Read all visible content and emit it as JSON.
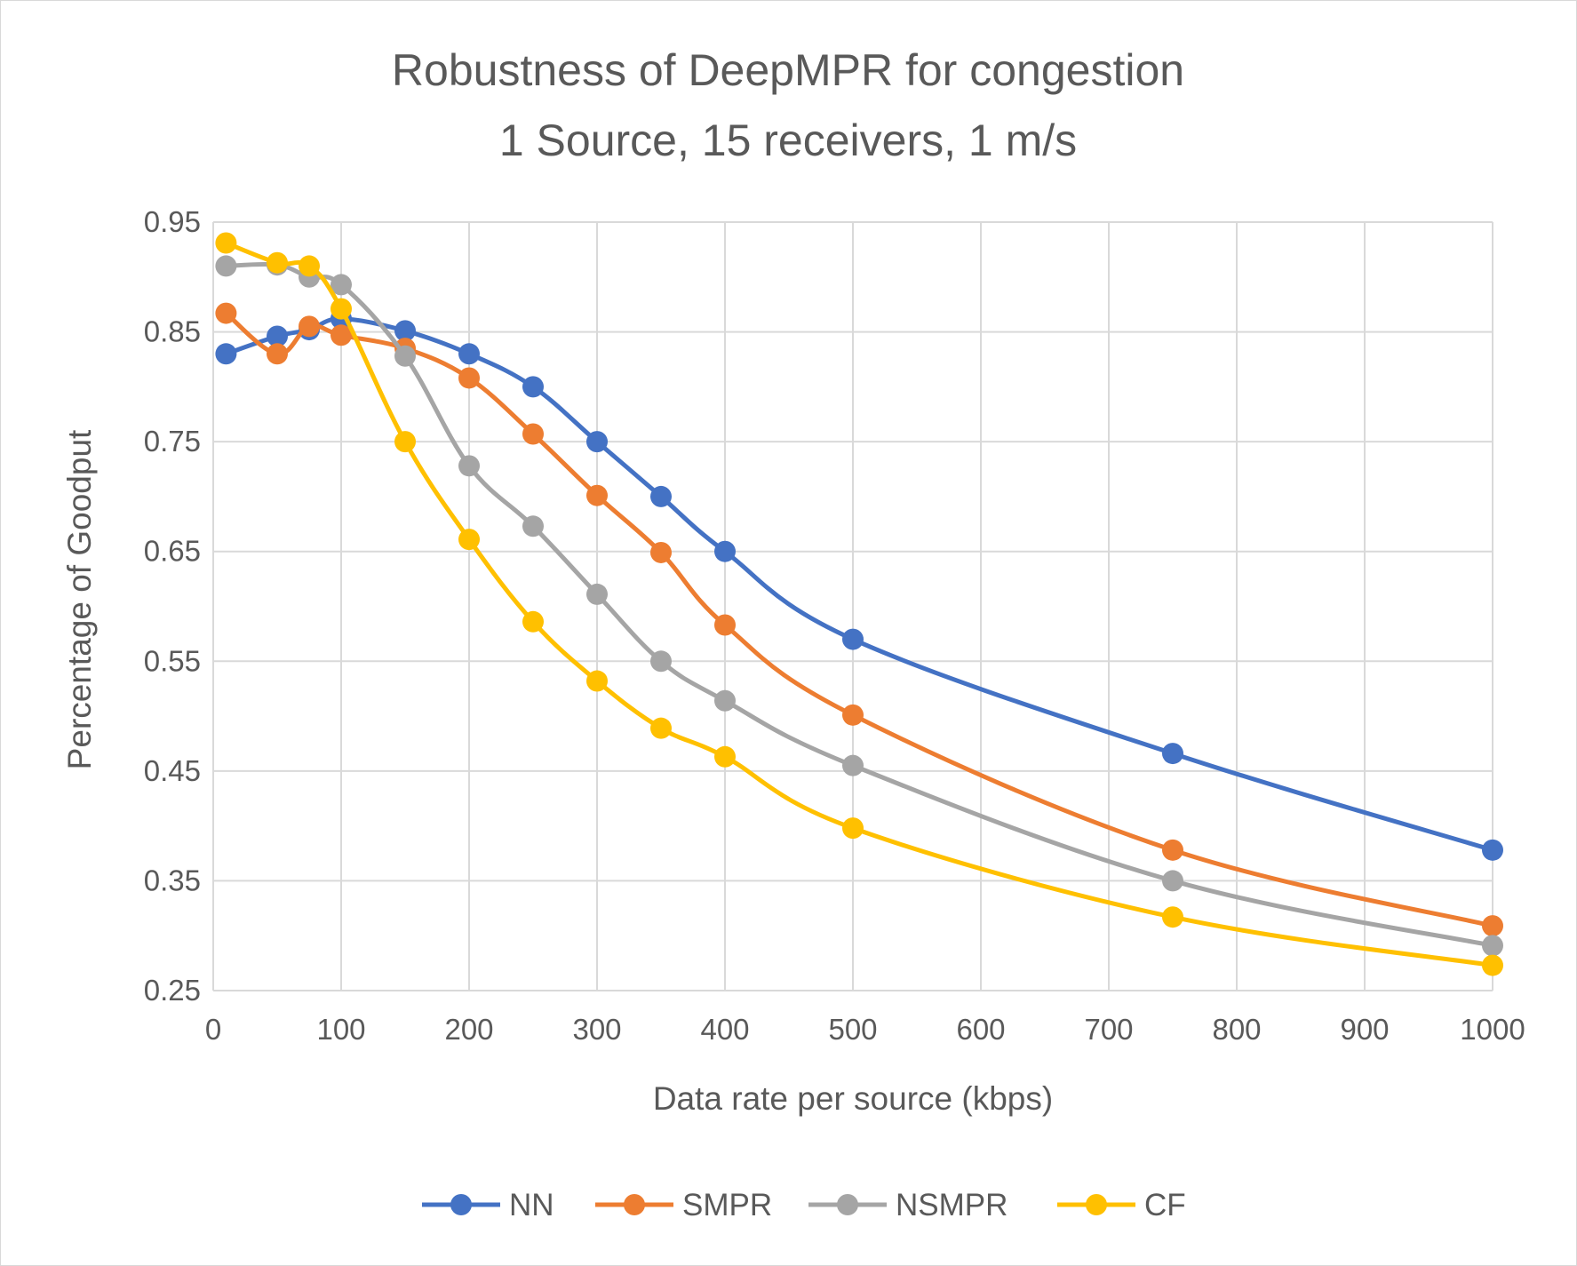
{
  "chart_data": {
    "type": "line",
    "title": [
      "Robustness of DeepMPR for congestion",
      "1 Source, 15 receivers, 1 m/s"
    ],
    "xlabel": "Data rate per source (kbps)",
    "ylabel": "Percentage of Goodput",
    "xlim": [
      0,
      1000
    ],
    "ylim": [
      0.25,
      0.95
    ],
    "xticks": [
      "0",
      "100",
      "200",
      "300",
      "400",
      "500",
      "600",
      "700",
      "800",
      "900",
      "1000"
    ],
    "yticks": [
      "0.25",
      "0.35",
      "0.45",
      "0.55",
      "0.65",
      "0.75",
      "0.85",
      "0.95"
    ],
    "grid": true,
    "legend_position": "bottom",
    "x": [
      10,
      50,
      75,
      100,
      150,
      200,
      250,
      300,
      350,
      400,
      500,
      750,
      1000
    ],
    "series": [
      {
        "name": "NN",
        "color": "#4472c4",
        "values": [
          0.83,
          0.846,
          0.852,
          0.862,
          0.851,
          0.83,
          0.8,
          0.75,
          0.7,
          0.65,
          0.57,
          0.466,
          0.378
        ]
      },
      {
        "name": "SMPR",
        "color": "#ed7d31",
        "values": [
          0.867,
          0.83,
          0.855,
          0.847,
          0.835,
          0.808,
          0.757,
          0.701,
          0.649,
          0.583,
          0.501,
          0.378,
          0.309
        ]
      },
      {
        "name": "NSMPR",
        "color": "#a5a5a5",
        "values": [
          0.91,
          0.911,
          0.9,
          0.893,
          0.828,
          0.728,
          0.673,
          0.611,
          0.55,
          0.514,
          0.455,
          0.35,
          0.291
        ]
      },
      {
        "name": "CF",
        "color": "#ffc000",
        "values": [
          0.931,
          0.913,
          0.91,
          0.871,
          0.75,
          0.661,
          0.586,
          0.532,
          0.489,
          0.463,
          0.398,
          0.317,
          0.273
        ]
      }
    ]
  }
}
